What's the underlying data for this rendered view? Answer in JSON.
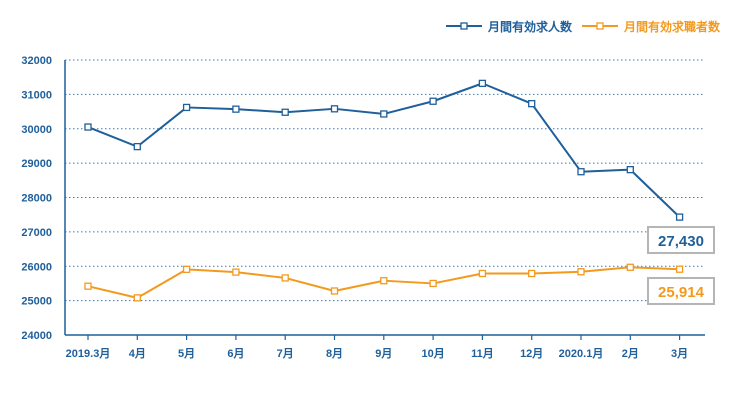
{
  "chart_data": {
    "type": "line",
    "categories": [
      "2019.3月",
      "4月",
      "5月",
      "6月",
      "7月",
      "8月",
      "9月",
      "10月",
      "11月",
      "12月",
      "2020.1月",
      "2月",
      "3月"
    ],
    "ylim": [
      24000,
      32000
    ],
    "yticks": [
      24000,
      25000,
      26000,
      27000,
      28000,
      29000,
      30000,
      31000,
      32000
    ],
    "grid": true,
    "legend_position": "top-right",
    "series": [
      {
        "name": "月間有効求人数",
        "color": "#1f5f9a",
        "values": [
          30050,
          29480,
          30620,
          30570,
          30480,
          30580,
          30430,
          30800,
          31320,
          30730,
          28750,
          28810,
          27430
        ],
        "end_label": "27,430"
      },
      {
        "name": "月間有効求職者数",
        "color": "#f39a1e",
        "values": [
          25420,
          25080,
          25910,
          25830,
          25660,
          25280,
          25580,
          25500,
          25790,
          25790,
          25840,
          25970,
          25914
        ],
        "end_label": "25,914"
      }
    ]
  }
}
